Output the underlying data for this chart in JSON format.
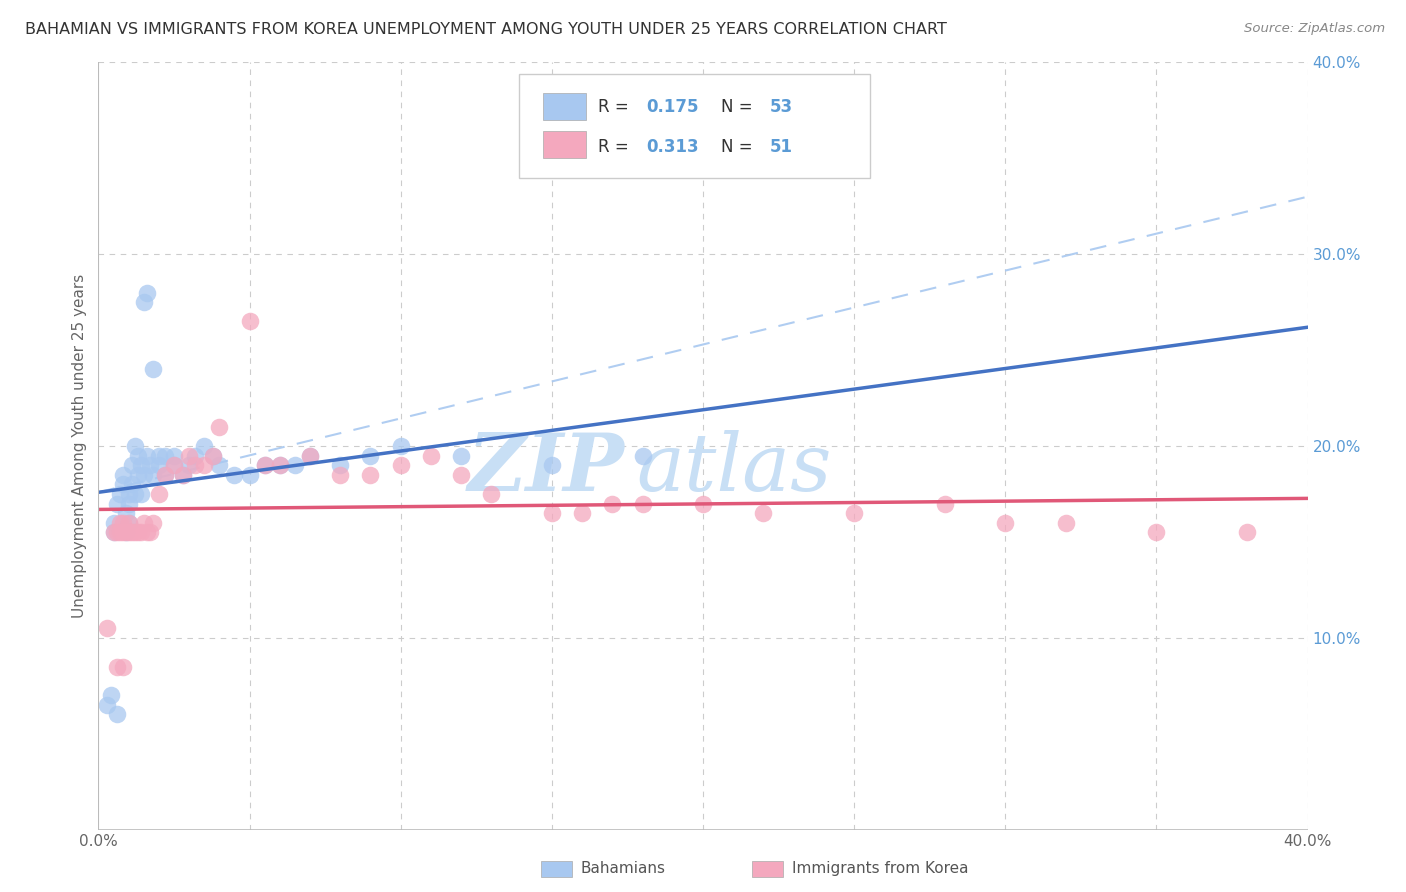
{
  "title": "BAHAMIAN VS IMMIGRANTS FROM KOREA UNEMPLOYMENT AMONG YOUTH UNDER 25 YEARS CORRELATION CHART",
  "source": "Source: ZipAtlas.com",
  "ylabel": "Unemployment Among Youth under 25 years",
  "xlim": [
    0,
    0.4
  ],
  "ylim": [
    0,
    0.4
  ],
  "legend_r1": "0.175",
  "legend_n1": "53",
  "legend_r2": "0.313",
  "legend_n2": "51",
  "color_blue": "#A8C8F0",
  "color_pink": "#F4A8BE",
  "color_blue_line": "#4472C4",
  "color_pink_line": "#E05878",
  "color_blue_dashed": "#A8C8F0",
  "watermark_color": "#C8DFF5",
  "background_color": "#FFFFFF",
  "grid_color": "#CCCCCC",
  "bah_x": [
    0.005,
    0.005,
    0.006,
    0.007,
    0.008,
    0.008,
    0.009,
    0.009,
    0.01,
    0.01,
    0.01,
    0.011,
    0.011,
    0.012,
    0.012,
    0.013,
    0.013,
    0.014,
    0.014,
    0.015,
    0.015,
    0.016,
    0.016,
    0.017,
    0.018,
    0.018,
    0.02,
    0.02,
    0.022,
    0.022,
    0.025,
    0.025,
    0.028,
    0.03,
    0.032,
    0.035,
    0.038,
    0.04,
    0.045,
    0.05,
    0.055,
    0.06,
    0.065,
    0.07,
    0.08,
    0.09,
    0.1,
    0.12,
    0.15,
    0.18,
    0.003,
    0.004,
    0.006
  ],
  "bah_y": [
    0.155,
    0.16,
    0.17,
    0.175,
    0.18,
    0.185,
    0.155,
    0.165,
    0.16,
    0.17,
    0.175,
    0.18,
    0.19,
    0.175,
    0.2,
    0.195,
    0.185,
    0.19,
    0.175,
    0.185,
    0.275,
    0.28,
    0.195,
    0.19,
    0.185,
    0.24,
    0.195,
    0.19,
    0.195,
    0.185,
    0.19,
    0.195,
    0.185,
    0.19,
    0.195,
    0.2,
    0.195,
    0.19,
    0.185,
    0.185,
    0.19,
    0.19,
    0.19,
    0.195,
    0.19,
    0.195,
    0.2,
    0.195,
    0.19,
    0.195,
    0.065,
    0.07,
    0.06
  ],
  "kor_x": [
    0.005,
    0.006,
    0.007,
    0.007,
    0.008,
    0.008,
    0.009,
    0.01,
    0.01,
    0.011,
    0.012,
    0.013,
    0.014,
    0.015,
    0.016,
    0.017,
    0.018,
    0.02,
    0.022,
    0.025,
    0.028,
    0.03,
    0.032,
    0.035,
    0.038,
    0.04,
    0.05,
    0.055,
    0.06,
    0.07,
    0.08,
    0.09,
    0.1,
    0.11,
    0.12,
    0.13,
    0.15,
    0.16,
    0.17,
    0.18,
    0.2,
    0.22,
    0.25,
    0.28,
    0.3,
    0.32,
    0.35,
    0.38,
    0.006,
    0.008,
    0.003
  ],
  "kor_y": [
    0.155,
    0.155,
    0.16,
    0.155,
    0.155,
    0.16,
    0.155,
    0.16,
    0.155,
    0.155,
    0.155,
    0.155,
    0.155,
    0.16,
    0.155,
    0.155,
    0.16,
    0.175,
    0.185,
    0.19,
    0.185,
    0.195,
    0.19,
    0.19,
    0.195,
    0.21,
    0.265,
    0.19,
    0.19,
    0.195,
    0.185,
    0.185,
    0.19,
    0.195,
    0.185,
    0.175,
    0.165,
    0.165,
    0.17,
    0.17,
    0.17,
    0.165,
    0.165,
    0.17,
    0.16,
    0.16,
    0.155,
    0.155,
    0.085,
    0.085,
    0.105
  ]
}
